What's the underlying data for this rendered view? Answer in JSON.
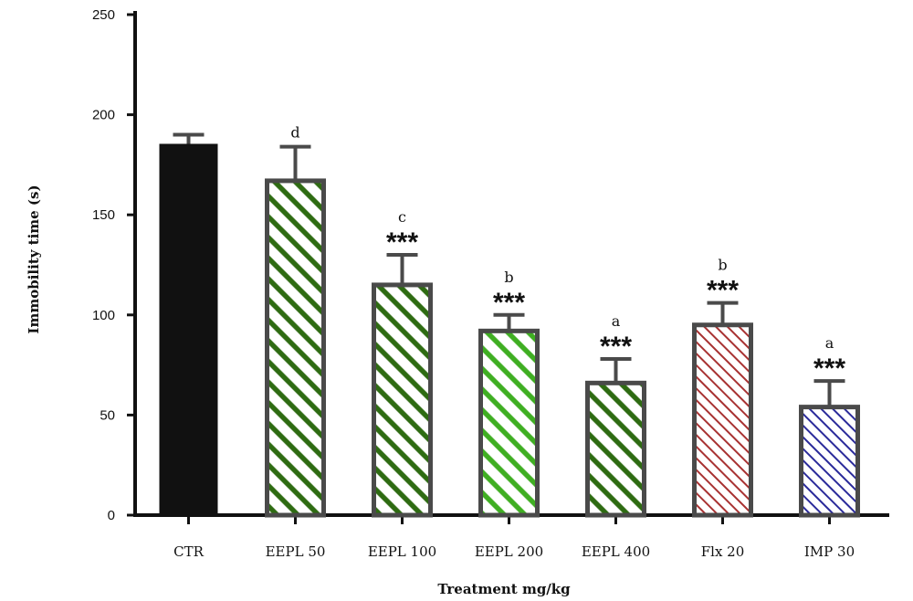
{
  "chart_data": {
    "type": "bar",
    "title": "",
    "xlabel": "Treatment mg/kg",
    "ylabel": "Immobility time (s)",
    "ylim": [
      0,
      250
    ],
    "yticks": [
      0,
      50,
      100,
      150,
      200,
      250
    ],
    "grid": false,
    "categories": [
      "CTR",
      "EEPL 50",
      "EEPL 100",
      "EEPL 200",
      "EEPL 400",
      "Flx 20",
      "IMP 30"
    ],
    "values": [
      185,
      167,
      115,
      92,
      66,
      95,
      54
    ],
    "errors": [
      5,
      17,
      15,
      8,
      12,
      11,
      13
    ],
    "letters": [
      "",
      "d",
      "c",
      "b",
      "a",
      "b",
      "a"
    ],
    "significance": [
      "",
      "",
      "***",
      "***",
      "***",
      "***",
      "***"
    ],
    "bar_styles": [
      {
        "fill": "solid",
        "color": "#111111"
      },
      {
        "fill": "hatch",
        "color": "#2e6b12"
      },
      {
        "fill": "hatch",
        "color": "#2e6b12"
      },
      {
        "fill": "hatch",
        "color": "#3fae22"
      },
      {
        "fill": "hatch",
        "color": "#2e6b12"
      },
      {
        "fill": "hatch",
        "color": "#a83232"
      },
      {
        "fill": "hatch",
        "color": "#2a2a9a"
      }
    ],
    "frame_color": "#4a4a4a"
  }
}
